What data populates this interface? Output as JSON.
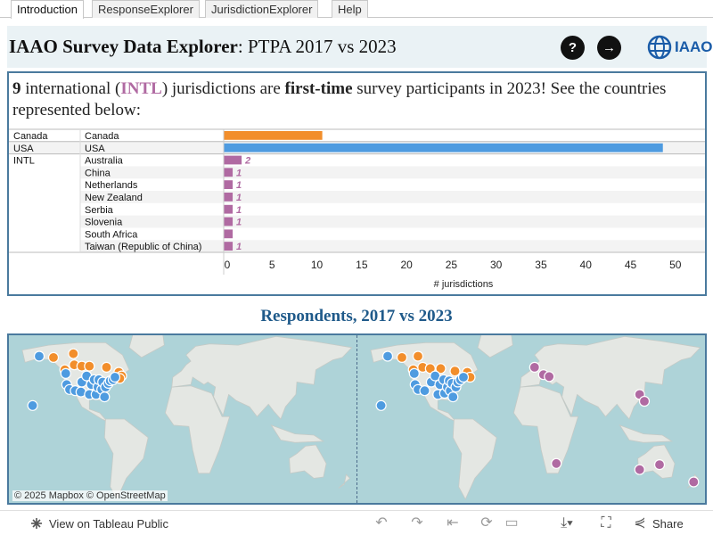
{
  "tabs": [
    "Introduction",
    "ResponseExplorer",
    "JurisdictionExplorer",
    "Help"
  ],
  "header": {
    "title_bold": "IAAO Survey Data Explorer",
    "title_rest": ": PTPA 2017 vs 2023",
    "help_label": "?",
    "next_label": "→",
    "logo_text": "IAAO"
  },
  "intro": {
    "count": "9",
    "t1": " international (",
    "intl": "INTL",
    "t2": ") jurisdictions are ",
    "first": "first-time",
    "t3": " survey participants in 2023! See the countries represented below:"
  },
  "colors": {
    "Canada": "#f28e2b",
    "USA": "#4e9be0",
    "INTL": "#b06aa2",
    "accent": "#1f5a8a"
  },
  "chart_data": {
    "type": "bar",
    "orientation": "horizontal",
    "rows": [
      {
        "group": "Canada",
        "country": "Canada",
        "value": 11,
        "label": ""
      },
      {
        "group": "USA",
        "country": "USA",
        "value": 49,
        "label": ""
      },
      {
        "group": "INTL",
        "country": "Australia",
        "value": 2,
        "label": "2"
      },
      {
        "group": "INTL",
        "country": "China",
        "value": 1,
        "label": "1"
      },
      {
        "group": "INTL",
        "country": "Netherlands",
        "value": 1,
        "label": "1"
      },
      {
        "group": "INTL",
        "country": "New Zealand",
        "value": 1,
        "label": "1"
      },
      {
        "group": "INTL",
        "country": "Serbia",
        "value": 1,
        "label": "1"
      },
      {
        "group": "INTL",
        "country": "Slovenia",
        "value": 1,
        "label": "1"
      },
      {
        "group": "INTL",
        "country": "South Africa",
        "value": 1,
        "label": ""
      },
      {
        "group": "INTL",
        "country": "Taiwan (Republic of China)",
        "value": 1,
        "label": "1"
      }
    ],
    "xticks": [
      0,
      5,
      10,
      15,
      20,
      25,
      30,
      35,
      40,
      45,
      50
    ],
    "xlim": [
      0,
      53.7
    ],
    "xlabel": "# jurisdictions"
  },
  "maps": {
    "title": "Respondents, 2017 vs 2023",
    "attribution": "© 2025 Mapbox  © OpenStreetMap",
    "left_points": [
      {
        "lon": -150,
        "lat": 61,
        "g": "USA"
      },
      {
        "lon": -157,
        "lat": 21,
        "g": "USA"
      },
      {
        "lon": -135,
        "lat": 60,
        "g": "Canada"
      },
      {
        "lon": -114,
        "lat": 63,
        "g": "Canada"
      },
      {
        "lon": -123,
        "lat": 50,
        "g": "Canada"
      },
      {
        "lon": -113,
        "lat": 54,
        "g": "Canada"
      },
      {
        "lon": -105,
        "lat": 53,
        "g": "Canada"
      },
      {
        "lon": -97,
        "lat": 53,
        "g": "Canada"
      },
      {
        "lon": -79,
        "lat": 52,
        "g": "Canada"
      },
      {
        "lon": -66,
        "lat": 48,
        "g": "Canada"
      },
      {
        "lon": -63,
        "lat": 45,
        "g": "Canada"
      },
      {
        "lon": -65,
        "lat": 43,
        "g": "Canada"
      },
      {
        "lon": -122,
        "lat": 47,
        "g": "USA"
      },
      {
        "lon": -121,
        "lat": 38,
        "g": "USA"
      },
      {
        "lon": -118,
        "lat": 34,
        "g": "USA"
      },
      {
        "lon": -112,
        "lat": 33,
        "g": "USA"
      },
      {
        "lon": -105,
        "lat": 40,
        "g": "USA"
      },
      {
        "lon": -106,
        "lat": 32,
        "g": "USA"
      },
      {
        "lon": -100,
        "lat": 45,
        "g": "USA"
      },
      {
        "lon": -97,
        "lat": 30,
        "g": "USA"
      },
      {
        "lon": -95,
        "lat": 38,
        "g": "USA"
      },
      {
        "lon": -92,
        "lat": 42,
        "g": "USA"
      },
      {
        "lon": -90,
        "lat": 30,
        "g": "USA"
      },
      {
        "lon": -88,
        "lat": 36,
        "g": "USA"
      },
      {
        "lon": -87,
        "lat": 42,
        "g": "USA"
      },
      {
        "lon": -84,
        "lat": 34,
        "g": "USA"
      },
      {
        "lon": -83,
        "lat": 40,
        "g": "USA"
      },
      {
        "lon": -81,
        "lat": 28,
        "g": "USA"
      },
      {
        "lon": -80,
        "lat": 36,
        "g": "USA"
      },
      {
        "lon": -77,
        "lat": 39,
        "g": "USA"
      },
      {
        "lon": -75,
        "lat": 41,
        "g": "USA"
      },
      {
        "lon": -72,
        "lat": 42,
        "g": "USA"
      },
      {
        "lon": -70,
        "lat": 44,
        "g": "USA"
      }
    ],
    "right_points": [
      {
        "lon": -150,
        "lat": 61,
        "g": "USA"
      },
      {
        "lon": -157,
        "lat": 21,
        "g": "USA"
      },
      {
        "lon": -135,
        "lat": 60,
        "g": "Canada"
      },
      {
        "lon": -118,
        "lat": 61,
        "g": "Canada"
      },
      {
        "lon": -123,
        "lat": 50,
        "g": "Canada"
      },
      {
        "lon": -113,
        "lat": 52,
        "g": "Canada"
      },
      {
        "lon": -105,
        "lat": 51,
        "g": "Canada"
      },
      {
        "lon": -94,
        "lat": 51,
        "g": "Canada"
      },
      {
        "lon": -79,
        "lat": 49,
        "g": "Canada"
      },
      {
        "lon": -66,
        "lat": 48,
        "g": "Canada"
      },
      {
        "lon": -63,
        "lat": 44,
        "g": "Canada"
      },
      {
        "lon": -122,
        "lat": 47,
        "g": "USA"
      },
      {
        "lon": -121,
        "lat": 38,
        "g": "USA"
      },
      {
        "lon": -118,
        "lat": 34,
        "g": "USA"
      },
      {
        "lon": -111,
        "lat": 33,
        "g": "USA"
      },
      {
        "lon": -104,
        "lat": 40,
        "g": "USA"
      },
      {
        "lon": -100,
        "lat": 45,
        "g": "USA"
      },
      {
        "lon": -97,
        "lat": 30,
        "g": "USA"
      },
      {
        "lon": -95,
        "lat": 38,
        "g": "USA"
      },
      {
        "lon": -91,
        "lat": 42,
        "g": "USA"
      },
      {
        "lon": -90,
        "lat": 31,
        "g": "USA"
      },
      {
        "lon": -87,
        "lat": 36,
        "g": "USA"
      },
      {
        "lon": -85,
        "lat": 41,
        "g": "USA"
      },
      {
        "lon": -84,
        "lat": 33,
        "g": "USA"
      },
      {
        "lon": -82,
        "lat": 39,
        "g": "USA"
      },
      {
        "lon": -81,
        "lat": 28,
        "g": "USA"
      },
      {
        "lon": -78,
        "lat": 36,
        "g": "USA"
      },
      {
        "lon": -76,
        "lat": 40,
        "g": "USA"
      },
      {
        "lon": -73,
        "lat": 42,
        "g": "USA"
      },
      {
        "lon": -70,
        "lat": 44,
        "g": "USA"
      },
      {
        "lon": 5,
        "lat": 52,
        "g": "INTL"
      },
      {
        "lon": 14.5,
        "lat": 46,
        "g": "INTL"
      },
      {
        "lon": 20.5,
        "lat": 44.5,
        "g": "INTL"
      },
      {
        "lon": 116,
        "lat": 30,
        "g": "INTL"
      },
      {
        "lon": 121,
        "lat": 24.5,
        "g": "INTL"
      },
      {
        "lon": 116,
        "lat": -31,
        "g": "INTL"
      },
      {
        "lon": 137,
        "lat": -27,
        "g": "INTL"
      },
      {
        "lon": 173,
        "lat": -41,
        "g": "INTL"
      },
      {
        "lon": 28,
        "lat": -26,
        "g": "INTL"
      }
    ]
  },
  "footer": {
    "view_label": "View on Tableau Public",
    "share_label": "Share"
  }
}
